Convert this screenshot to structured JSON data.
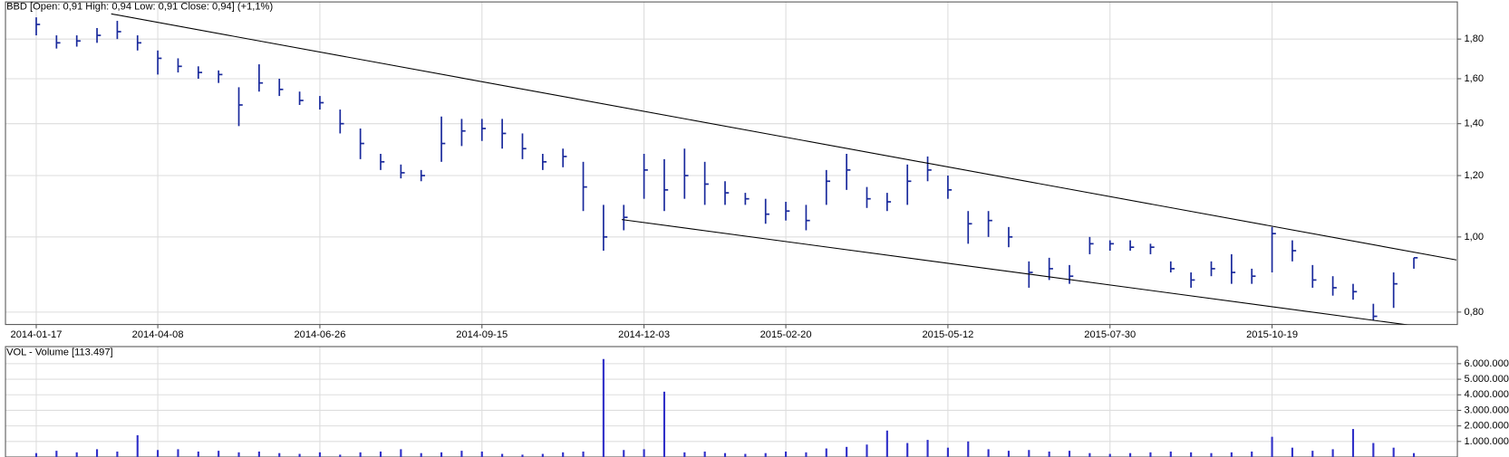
{
  "chart_data": [
    {
      "type": "hlc",
      "title": "BBD [Open: 0,91  High: 0,94  Low: 0,91  Close: 0,94] (+1,1%)",
      "categories": [
        "2014-01-17",
        null,
        null,
        null,
        null,
        null,
        "2014-04-08",
        null,
        null,
        null,
        null,
        null,
        null,
        null,
        "2014-06-26",
        null,
        null,
        null,
        null,
        null,
        null,
        null,
        "2014-09-15",
        null,
        null,
        null,
        null,
        null,
        null,
        null,
        "2014-12-03",
        null,
        null,
        null,
        null,
        null,
        null,
        "2015-02-20",
        null,
        null,
        null,
        null,
        null,
        null,
        null,
        "2015-05-12",
        null,
        null,
        null,
        null,
        null,
        null,
        null,
        "2015-07-30",
        null,
        null,
        null,
        null,
        null,
        null,
        null,
        "2015-10-19",
        null,
        null,
        null,
        null,
        null,
        null,
        null
      ],
      "high": [
        1.92,
        1.82,
        1.82,
        1.86,
        1.9,
        1.82,
        1.74,
        1.7,
        1.66,
        1.64,
        1.56,
        1.67,
        1.6,
        1.54,
        1.52,
        1.46,
        1.38,
        1.28,
        1.24,
        1.22,
        1.43,
        1.42,
        1.42,
        1.42,
        1.36,
        1.28,
        1.3,
        1.25,
        1.1,
        1.1,
        1.28,
        1.26,
        1.3,
        1.25,
        1.18,
        1.14,
        1.12,
        1.11,
        1.1,
        1.22,
        1.28,
        1.16,
        1.14,
        1.24,
        1.27,
        1.2,
        1.08,
        1.08,
        1.03,
        0.93,
        0.94,
        0.92,
        1.0,
        0.99,
        0.99,
        0.98,
        0.93,
        0.9,
        0.93,
        0.95,
        0.91,
        1.03,
        0.99,
        0.92,
        0.89,
        0.87,
        0.82,
        0.9,
        0.94
      ],
      "low": [
        1.82,
        1.75,
        1.76,
        1.78,
        1.8,
        1.74,
        1.62,
        1.63,
        1.6,
        1.58,
        1.39,
        1.54,
        1.52,
        1.48,
        1.46,
        1.36,
        1.26,
        1.22,
        1.19,
        1.18,
        1.25,
        1.31,
        1.33,
        1.3,
        1.26,
        1.22,
        1.23,
        1.08,
        0.96,
        1.02,
        1.12,
        1.08,
        1.12,
        1.1,
        1.1,
        1.1,
        1.04,
        1.05,
        1.02,
        1.1,
        1.15,
        1.09,
        1.08,
        1.1,
        1.18,
        1.12,
        0.98,
        1.0,
        0.97,
        0.86,
        0.88,
        0.87,
        0.95,
        0.96,
        0.96,
        0.95,
        0.9,
        0.86,
        0.89,
        0.87,
        0.87,
        0.9,
        0.93,
        0.86,
        0.84,
        0.83,
        0.78,
        0.81,
        0.91
      ],
      "close": [
        1.88,
        1.78,
        1.79,
        1.82,
        1.84,
        1.78,
        1.7,
        1.66,
        1.63,
        1.62,
        1.48,
        1.58,
        1.55,
        1.5,
        1.49,
        1.4,
        1.32,
        1.25,
        1.21,
        1.2,
        1.32,
        1.37,
        1.38,
        1.36,
        1.3,
        1.25,
        1.27,
        1.16,
        1.0,
        1.06,
        1.22,
        1.15,
        1.2,
        1.17,
        1.14,
        1.12,
        1.07,
        1.08,
        1.05,
        1.18,
        1.22,
        1.12,
        1.11,
        1.18,
        1.22,
        1.15,
        1.04,
        1.05,
        1.0,
        0.9,
        0.91,
        0.89,
        0.98,
        0.98,
        0.97,
        0.97,
        0.91,
        0.88,
        0.91,
        0.9,
        0.89,
        1.01,
        0.96,
        0.88,
        0.86,
        0.85,
        0.79,
        0.87,
        0.94
      ],
      "color": "#1a2a9c",
      "log_scale": true,
      "ylim": [
        0.771,
        2.01
      ],
      "yticks": [
        {
          "value": 0.8,
          "label": "0,80"
        },
        {
          "value": 1.0,
          "label": "1,00"
        },
        {
          "value": 1.2,
          "label": "1,20"
        },
        {
          "value": 1.4,
          "label": "1,40"
        },
        {
          "value": 1.6,
          "label": "1,60"
        },
        {
          "value": 1.8,
          "label": "1,80"
        }
      ],
      "trendlines": [
        {
          "x": [
            3.7,
            70.1
          ],
          "y": [
            1.94,
            0.934
          ]
        },
        {
          "x": [
            28.9,
            68.2
          ],
          "y": [
            1.053,
            0.767
          ]
        }
      ],
      "grid": true
    },
    {
      "type": "bar",
      "title": "VOL - Volume [113.497]",
      "values": [
        250000,
        400000,
        300000,
        500000,
        350000,
        1400000,
        450000,
        500000,
        350000,
        400000,
        300000,
        350000,
        250000,
        200000,
        300000,
        150000,
        300000,
        350000,
        500000,
        250000,
        300000,
        400000,
        350000,
        200000,
        150000,
        200000,
        300000,
        350000,
        6300000,
        450000,
        500000,
        4200000,
        300000,
        350000,
        250000,
        200000,
        250000,
        350000,
        300000,
        550000,
        650000,
        800000,
        1700000,
        900000,
        1100000,
        600000,
        1000000,
        500000,
        400000,
        450000,
        350000,
        400000,
        250000,
        200000,
        250000,
        300000,
        350000,
        300000,
        250000,
        300000,
        350000,
        1300000,
        600000,
        400000,
        500000,
        1800000,
        900000,
        600000,
        250000
      ],
      "color": "#3030c8",
      "ylim": [
        0,
        7100000
      ],
      "yticks": [
        {
          "value": 1000000,
          "label": "1.000.000"
        },
        {
          "value": 2000000,
          "label": "2.000.000"
        },
        {
          "value": 3000000,
          "label": "3.000.000"
        },
        {
          "value": 4000000,
          "label": "4.000.000"
        },
        {
          "value": 5000000,
          "label": "5.000.000"
        },
        {
          "value": 6000000,
          "label": "6.000.000"
        }
      ],
      "grid": true
    }
  ]
}
